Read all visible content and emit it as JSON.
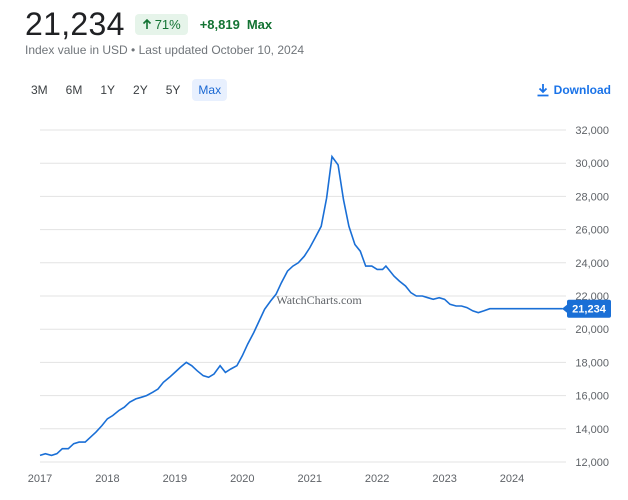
{
  "header": {
    "value": "21,234",
    "percent_change": "71%",
    "absolute_change": "+8,819",
    "period": "Max",
    "subtitle": "Index value in USD • Last updated October 10, 2024"
  },
  "ranges": [
    {
      "label": "3M"
    },
    {
      "label": "6M"
    },
    {
      "label": "1Y"
    },
    {
      "label": "2Y"
    },
    {
      "label": "5Y"
    },
    {
      "label": "Max",
      "active": true
    }
  ],
  "download_label": "Download",
  "watermark": "WatchCharts.com",
  "colors": {
    "line": "#1a6fd6",
    "positive": "#137333",
    "link": "#1a73e8"
  },
  "chart_data": {
    "type": "line",
    "x_labels": [
      "2017",
      "2018",
      "2019",
      "2020",
      "2021",
      "2022",
      "2023",
      "2024"
    ],
    "y_ticks": [
      "12,000",
      "14,000",
      "16,000",
      "18,000",
      "20,000",
      "22,000",
      "24,000",
      "26,000",
      "28,000",
      "30,000",
      "32,000"
    ],
    "ylim": [
      12000,
      32000
    ],
    "xlim": [
      2017.0,
      2024.8
    ],
    "grid": true,
    "last_value_label": "21,234",
    "series": [
      {
        "x": [
          2017.0,
          2017.08,
          2017.17,
          2017.25,
          2017.33,
          2017.42,
          2017.5,
          2017.58,
          2017.67,
          2017.75,
          2017.83,
          2017.92,
          2018.0,
          2018.08,
          2018.17,
          2018.25,
          2018.33,
          2018.42,
          2018.5,
          2018.58,
          2018.67,
          2018.75,
          2018.83,
          2018.92,
          2019.0,
          2019.08,
          2019.17,
          2019.25,
          2019.33,
          2019.42,
          2019.5,
          2019.58,
          2019.67,
          2019.75,
          2019.83,
          2019.92,
          2020.0,
          2020.08,
          2020.17,
          2020.25,
          2020.33,
          2020.42,
          2020.5,
          2020.58,
          2020.67,
          2020.75,
          2020.83,
          2020.92,
          2021.0,
          2021.08,
          2021.17,
          2021.25,
          2021.33,
          2021.42,
          2021.5,
          2021.58,
          2021.67,
          2021.75,
          2021.83,
          2021.92,
          2022.0,
          2022.08,
          2022.13,
          2022.17,
          2022.25,
          2022.33,
          2022.42,
          2022.5,
          2022.58,
          2022.67,
          2022.75,
          2022.83,
          2022.92,
          2023.0,
          2023.08,
          2023.17,
          2023.25,
          2023.33,
          2023.42,
          2023.5,
          2023.58,
          2023.67,
          2023.75,
          2023.83,
          2023.92,
          2024.0,
          2024.08,
          2024.17,
          2024.25,
          2024.33,
          2024.42,
          2024.5,
          2024.58,
          2024.67,
          2024.75
        ],
        "y": [
          12400,
          12500,
          12400,
          12500,
          12800,
          12800,
          13100,
          13200,
          13200,
          13500,
          13800,
          14200,
          14600,
          14800,
          15100,
          15300,
          15600,
          15800,
          15900,
          16000,
          16200,
          16400,
          16800,
          17100,
          17400,
          17700,
          18000,
          17800,
          17500,
          17200,
          17100,
          17300,
          17800,
          17400,
          17600,
          17800,
          18400,
          19100,
          19800,
          20500,
          21200,
          21700,
          22100,
          22800,
          23500,
          23800,
          24000,
          24400,
          24900,
          25500,
          26200,
          27900,
          30400,
          29900,
          27800,
          26200,
          25100,
          24700,
          23800,
          23800,
          23600,
          23600,
          23800,
          23600,
          23200,
          22900,
          22600,
          22200,
          22000,
          22000,
          21900,
          21800,
          21900,
          21800,
          21500,
          21400,
          21400,
          21300,
          21100,
          21000,
          21100,
          21234,
          21234,
          21234,
          21234,
          21234,
          21234,
          21234,
          21234,
          21234,
          21234,
          21234,
          21234,
          21234,
          21234
        ]
      }
    ]
  }
}
